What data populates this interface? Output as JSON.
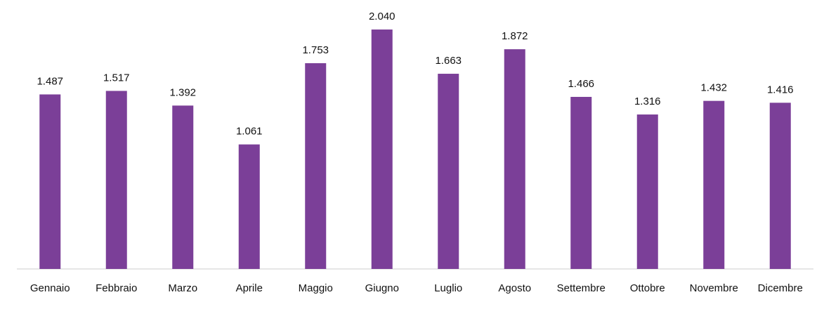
{
  "chart_data": {
    "type": "bar",
    "categories": [
      "Gennaio",
      "Febbraio",
      "Marzo",
      "Aprile",
      "Maggio",
      "Giugno",
      "Luglio",
      "Agosto",
      "Settembre",
      "Ottobre",
      "Novembre",
      "Dicembre"
    ],
    "values": [
      1487,
      1517,
      1392,
      1061,
      1753,
      2040,
      1663,
      1872,
      1466,
      1316,
      1432,
      1416
    ],
    "value_labels": [
      "1.487",
      "1.517",
      "1.392",
      "1.061",
      "1.753",
      "2.040",
      "1.663",
      "1.872",
      "1.466",
      "1.316",
      "1.432",
      "1.416"
    ],
    "color": "#7b3f98",
    "ylim": [
      0,
      2100
    ]
  }
}
